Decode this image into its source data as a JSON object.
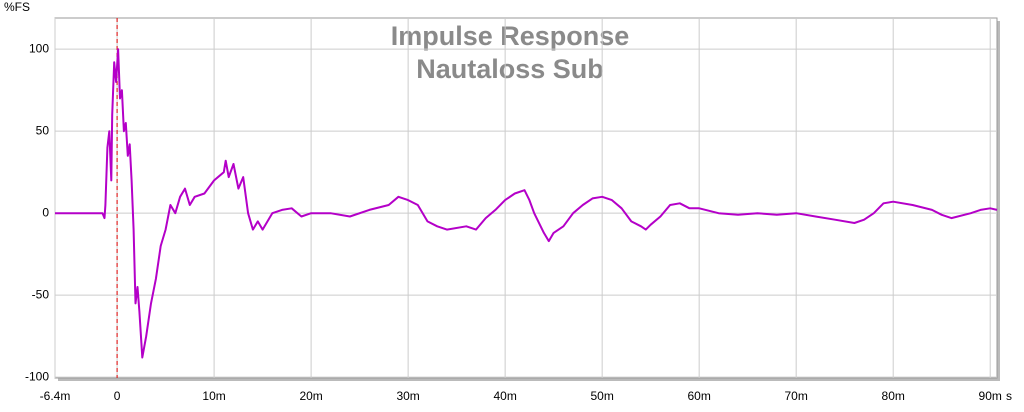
{
  "chart_data": {
    "type": "line",
    "title": "Impulse Response",
    "subtitle": "Nautaloss Sub",
    "y_label": "%FS",
    "x_label": "s",
    "xlim": [
      -0.0064,
      0.0907
    ],
    "ylim": [
      -100.5,
      119
    ],
    "xticks": [
      {
        "value": -0.0064,
        "label": "-6.4m"
      },
      0,
      {
        "value": 0.01,
        "label": "10m"
      },
      {
        "value": 0.02,
        "label": "20m"
      },
      {
        "value": 0.03,
        "label": "30m"
      },
      {
        "value": 0.04,
        "label": "40m"
      },
      {
        "value": 0.05,
        "label": "50m"
      },
      {
        "value": 0.06,
        "label": "60m"
      },
      {
        "value": 0.07,
        "label": "70m"
      },
      {
        "value": 0.08,
        "label": "80m"
      },
      {
        "value": 0.09,
        "label": "90m"
      }
    ],
    "yticks": [
      100,
      50,
      0,
      -50,
      -100
    ],
    "grid": true,
    "marker_x": 0,
    "marker_color": "#e00000",
    "series": [
      {
        "color": "#b400c8",
        "x": [
          -0.0064,
          -0.003,
          -0.0015,
          -0.0013,
          -0.0012,
          -0.001,
          -0.0008,
          -0.0006,
          -0.0005,
          -0.0003,
          -0.0001,
          0.0001,
          0.0003,
          0.0005,
          0.0007,
          0.0009,
          0.0011,
          0.0013,
          0.0015,
          0.0017,
          0.0019,
          0.0021,
          0.0023,
          0.0026,
          0.003,
          0.0035,
          0.004,
          0.0045,
          0.005,
          0.0055,
          0.006,
          0.0065,
          0.007,
          0.0075,
          0.008,
          0.009,
          0.01,
          0.011,
          0.0112,
          0.0115,
          0.012,
          0.0125,
          0.013,
          0.0135,
          0.014,
          0.0145,
          0.015,
          0.016,
          0.017,
          0.018,
          0.019,
          0.02,
          0.022,
          0.024,
          0.026,
          0.028,
          0.029,
          0.03,
          0.031,
          0.032,
          0.033,
          0.034,
          0.036,
          0.037,
          0.038,
          0.039,
          0.04,
          0.041,
          0.042,
          0.0425,
          0.043,
          0.044,
          0.0445,
          0.045,
          0.046,
          0.047,
          0.048,
          0.049,
          0.05,
          0.051,
          0.052,
          0.053,
          0.054,
          0.0545,
          0.055,
          0.056,
          0.057,
          0.058,
          0.059,
          0.06,
          0.062,
          0.064,
          0.066,
          0.068,
          0.07,
          0.072,
          0.074,
          0.076,
          0.077,
          0.078,
          0.079,
          0.08,
          0.082,
          0.084,
          0.085,
          0.086,
          0.088,
          0.089,
          0.09,
          0.0907
        ],
        "values": [
          0,
          0,
          0,
          -3,
          5,
          40,
          50,
          20,
          60,
          92,
          80,
          100,
          70,
          75,
          50,
          55,
          35,
          42,
          20,
          -10,
          -55,
          -45,
          -60,
          -88,
          -75,
          -55,
          -40,
          -20,
          -10,
          5,
          0,
          10,
          15,
          5,
          10,
          12,
          20,
          25,
          32,
          22,
          30,
          15,
          22,
          0,
          -10,
          -5,
          -10,
          0,
          2,
          3,
          -2,
          0,
          0,
          -2,
          2,
          5,
          10,
          8,
          5,
          -5,
          -8,
          -10,
          -8,
          -10,
          -3,
          2,
          8,
          12,
          14,
          8,
          0,
          -12,
          -17,
          -12,
          -8,
          0,
          5,
          9,
          10,
          8,
          3,
          -5,
          -8,
          -10,
          -7,
          -2,
          5,
          6,
          3,
          3,
          0,
          -1,
          0,
          -1,
          0,
          -2,
          -4,
          -6,
          -4,
          0,
          6,
          7,
          5,
          2,
          -1,
          -3,
          0,
          2,
          3,
          2
        ]
      }
    ]
  }
}
